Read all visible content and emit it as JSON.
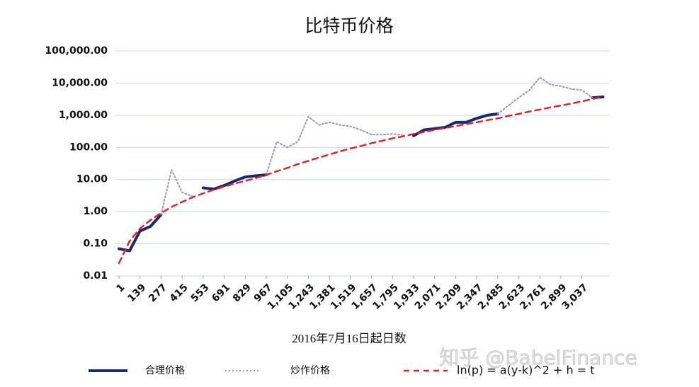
{
  "chart_data": {
    "type": "line",
    "title": "比特币价格",
    "x_label": "2016年7月16日起日数",
    "watermark": "知乎 @BabelFinance",
    "log_y": true,
    "grid": true,
    "xlim": [
      1,
      3215
    ],
    "ylim": [
      0.01,
      100000
    ],
    "xticks": [
      1,
      139,
      277,
      415,
      553,
      691,
      829,
      967,
      {
        "value": 1105,
        "label": "1,105"
      },
      {
        "value": 1243,
        "label": "1,243"
      },
      {
        "value": 1381,
        "label": "1,381"
      },
      {
        "value": 1519,
        "label": "1,519"
      },
      {
        "value": 1657,
        "label": "1,657"
      },
      {
        "value": 1795,
        "label": "1,795"
      },
      {
        "value": 1933,
        "label": "1,933"
      },
      {
        "value": 2071,
        "label": "2,071"
      },
      {
        "value": 2209,
        "label": "2,209"
      },
      {
        "value": 2347,
        "label": "2,347"
      },
      {
        "value": 2485,
        "label": "2,485"
      },
      {
        "value": 2623,
        "label": "2,623"
      },
      {
        "value": 2761,
        "label": "2,761"
      },
      {
        "value": 2899,
        "label": "2,899"
      },
      {
        "value": 3037,
        "label": "3,037"
      }
    ],
    "yticks": [
      {
        "value": 0.01,
        "label": "0.01"
      },
      {
        "value": 0.1,
        "label": "0.10"
      },
      {
        "value": 1,
        "label": "1.00"
      },
      {
        "value": 10,
        "label": "10.00"
      },
      {
        "value": 100,
        "label": "100.00"
      },
      {
        "value": 1000,
        "label": "1,000.00"
      },
      {
        "value": 10000,
        "label": "10,000.00"
      },
      {
        "value": 100000,
        "label": "100,000.00"
      }
    ],
    "x": [
      1,
      70,
      139,
      208,
      277,
      346,
      415,
      484,
      553,
      622,
      691,
      760,
      829,
      898,
      967,
      1036,
      1105,
      1174,
      1243,
      1312,
      1381,
      1450,
      1519,
      1588,
      1657,
      1726,
      1795,
      1864,
      1933,
      2002,
      2071,
      2140,
      2209,
      2278,
      2347,
      2416,
      2485,
      2554,
      2623,
      2692,
      2761,
      2830,
      2899,
      2968,
      3037,
      3106,
      3175
    ],
    "series": [
      {
        "name": "合理价格",
        "color": "#1b2a6b",
        "style": "solid",
        "values": [
          0.07,
          0.06,
          0.25,
          0.35,
          0.8,
          null,
          null,
          null,
          5.5,
          5,
          6.5,
          9,
          12,
          13,
          14,
          null,
          null,
          null,
          null,
          null,
          null,
          null,
          null,
          null,
          null,
          null,
          null,
          null,
          230,
          350,
          380,
          420,
          600,
          600,
          800,
          1000,
          1100,
          null,
          null,
          null,
          null,
          null,
          null,
          null,
          null,
          3500,
          3700
        ]
      },
      {
        "name": "炒作价格",
        "color": "#9a9aae",
        "style": "dotted",
        "values": [
          null,
          null,
          null,
          null,
          0.8,
          20,
          4,
          3,
          null,
          null,
          null,
          null,
          null,
          null,
          14,
          150,
          100,
          150,
          900,
          500,
          600,
          500,
          450,
          350,
          250,
          250,
          260,
          240,
          null,
          null,
          null,
          null,
          null,
          null,
          null,
          null,
          1100,
          2000,
          3500,
          6000,
          15000,
          9000,
          8000,
          6500,
          6000,
          3500,
          null
        ]
      },
      {
        "name": "ln(p) = a(y-k)^2 + h = t",
        "color": "#d42a2a",
        "style": "dashed",
        "values": [
          0.025,
          0.12,
          0.3,
          0.55,
          0.9,
          1.4,
          2,
          2.8,
          3.7,
          4.8,
          6,
          7.5,
          9,
          11,
          14,
          18,
          23,
          30,
          38,
          48,
          60,
          75,
          92,
          110,
          135,
          160,
          190,
          220,
          260,
          300,
          350,
          400,
          460,
          530,
          600,
          700,
          800,
          950,
          1100,
          1300,
          1500,
          1750,
          2000,
          2300,
          2700,
          3200,
          3800
        ]
      }
    ]
  }
}
